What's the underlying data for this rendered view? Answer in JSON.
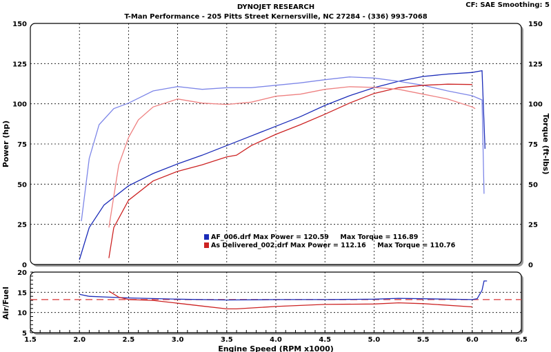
{
  "header": {
    "title": "DYNOJET RESEARCH",
    "subtitle": "T-Man Performance - 205 Pitts Street Kernersville, NC 27284 - (336) 993-7068",
    "settings": "CF: SAE  Smoothing: 5"
  },
  "legend": [
    {
      "file": "AF_006.drf",
      "text": "AF_006.drf Max Power = 120.59     Max Torque = 116.89",
      "color": "#1a2bb8"
    },
    {
      "file": "As Delivered_002.drf",
      "text": "As Delivered_002.drf Max Power = 112.16     Max Torque = 110.76",
      "color": "#cc2222"
    }
  ],
  "chart_data": [
    {
      "type": "line",
      "ylabel": "Power (hp)",
      "y2label": "Torque (ft-lbs)",
      "xlim": [
        1.5,
        6.5
      ],
      "ylim": [
        0,
        150
      ],
      "y_ticks": [
        0,
        25,
        50,
        75,
        100,
        125,
        150
      ],
      "grid": true,
      "series": [
        {
          "file": "AF_006.drf",
          "measure": "Power",
          "color": "#1a2bb8",
          "x": [
            2.0,
            2.1,
            2.25,
            2.5,
            2.75,
            3.0,
            3.25,
            3.5,
            3.75,
            4.0,
            4.25,
            4.5,
            4.75,
            5.0,
            5.25,
            5.5,
            5.75,
            6.0,
            6.1,
            6.13
          ],
          "y": [
            3,
            23,
            37,
            49,
            56.6,
            62.6,
            68,
            74,
            80,
            86,
            92,
            99,
            105,
            110,
            114,
            117,
            118.5,
            119.5,
            120.6,
            72
          ]
        },
        {
          "file": "AF_006.drf",
          "measure": "Torque",
          "color": "#7d86e8",
          "x": [
            2.02,
            2.1,
            2.2,
            2.35,
            2.5,
            2.75,
            3.0,
            3.25,
            3.5,
            3.75,
            4.0,
            4.25,
            4.5,
            4.75,
            5.0,
            5.25,
            5.5,
            5.75,
            6.0,
            6.1,
            6.12
          ],
          "y": [
            27,
            66,
            87,
            97,
            100.4,
            108,
            110.7,
            109,
            110,
            110,
            111.5,
            113,
            115,
            116.7,
            116,
            114,
            111.5,
            108,
            105,
            102.4,
            44
          ]
        },
        {
          "file": "As Delivered_002.drf",
          "measure": "Power",
          "color": "#cc2222",
          "x": [
            2.3,
            2.35,
            2.5,
            2.75,
            3.0,
            3.25,
            3.5,
            3.6,
            3.75,
            4.0,
            4.25,
            4.5,
            4.75,
            5.0,
            5.25,
            5.5,
            5.75,
            6.0
          ],
          "y": [
            4,
            23,
            40,
            52,
            58,
            62,
            67,
            68,
            74,
            81,
            87,
            93.5,
            100.4,
            106.4,
            110,
            111.5,
            112.2,
            112
          ]
        },
        {
          "file": "As Delivered_002.drf",
          "measure": "Torque",
          "color": "#ee8080",
          "x": [
            2.3,
            2.4,
            2.5,
            2.6,
            2.75,
            3.0,
            3.25,
            3.5,
            3.75,
            4.0,
            4.25,
            4.5,
            4.75,
            5.0,
            5.25,
            5.5,
            5.75,
            6.0,
            6.03
          ],
          "y": [
            23,
            62,
            79,
            90,
            98,
            103,
            100.4,
            99.6,
            101,
            104.7,
            106,
            109,
            110.6,
            110.2,
            109,
            106,
            103,
            98,
            97
          ]
        }
      ]
    },
    {
      "type": "line",
      "xlabel": "Engine Speed (RPM x1000)",
      "ylabel": "Air/Fuel",
      "xlim": [
        1.5,
        6.5
      ],
      "ylim": [
        5,
        20
      ],
      "x_ticks": [
        "1.5",
        "2.0",
        "2.5",
        "3.0",
        "3.5",
        "4.0",
        "4.5",
        "5.0",
        "5.5",
        "6.0",
        "6.5"
      ],
      "y_ticks": [
        5,
        10,
        15,
        20
      ],
      "grid": true,
      "reference_line": {
        "y": 13.2,
        "color": "#e05555",
        "style": "dashed"
      },
      "series": [
        {
          "file": "AF_006.drf",
          "color": "#1a2bb8",
          "x": [
            2.0,
            2.1,
            2.3,
            2.5,
            3.0,
            3.5,
            4.0,
            4.5,
            5.0,
            5.25,
            5.5,
            6.0,
            6.05,
            6.1,
            6.12,
            6.15
          ],
          "y": [
            14.5,
            14.0,
            13.8,
            13.6,
            13.3,
            13.1,
            13.2,
            13.2,
            13.3,
            13.5,
            13.4,
            13.2,
            13.4,
            15.5,
            17.8,
            17.8
          ]
        },
        {
          "file": "As Delivered_002.drf",
          "color": "#cc2222",
          "x": [
            2.3,
            2.4,
            2.5,
            2.75,
            3.0,
            3.25,
            3.5,
            3.6,
            4.0,
            4.5,
            5.0,
            5.25,
            5.5,
            6.0
          ],
          "y": [
            15.3,
            13.8,
            13.2,
            13.0,
            12.3,
            11.6,
            10.9,
            10.9,
            11.5,
            12.0,
            12.1,
            12.4,
            12.2,
            11.4
          ]
        }
      ]
    }
  ]
}
